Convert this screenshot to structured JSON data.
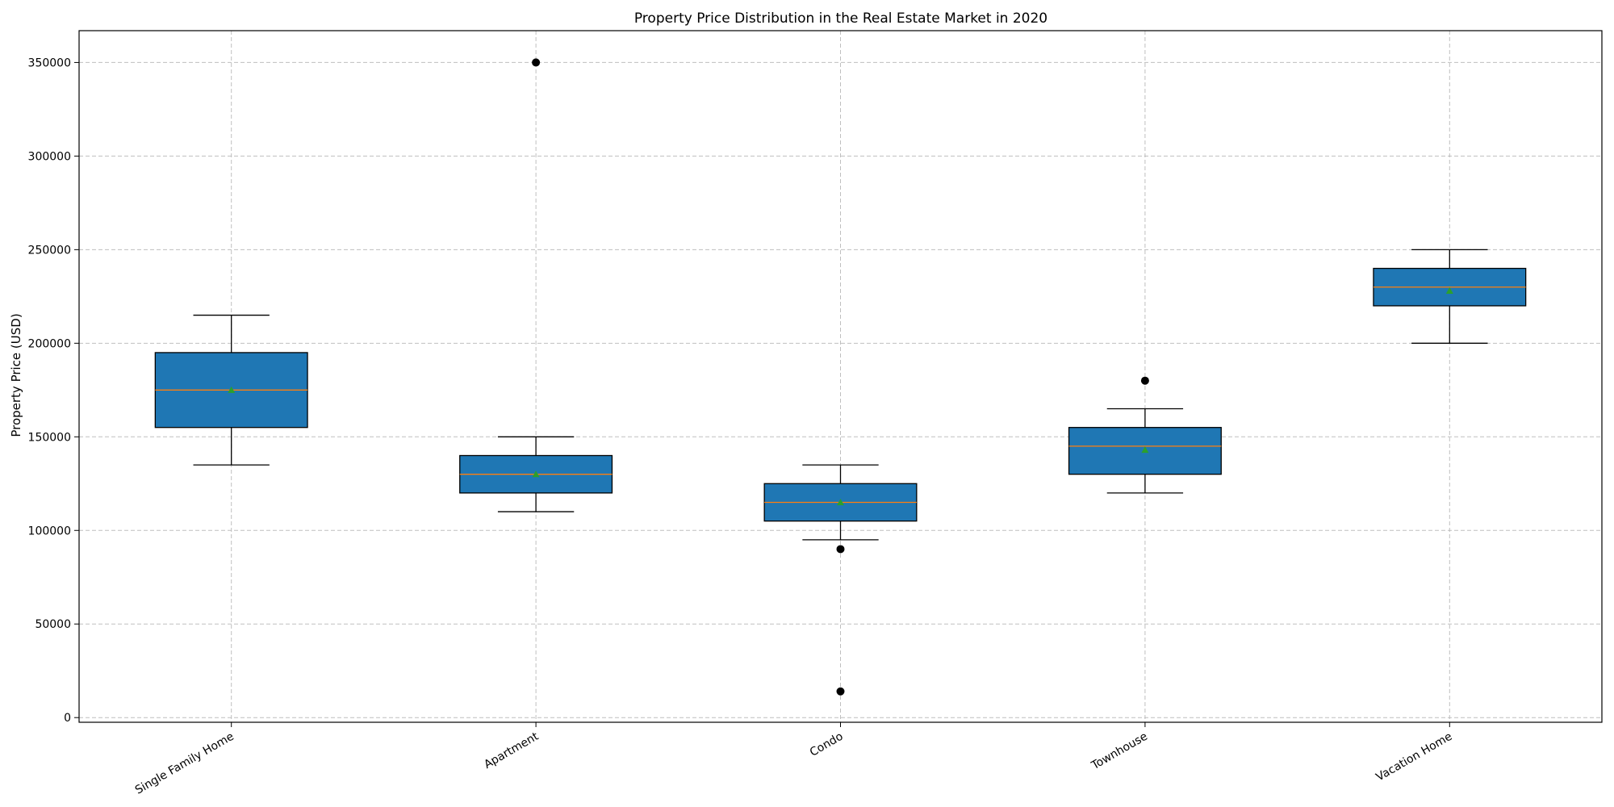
{
  "chart_data": {
    "type": "box",
    "title": "Property Price Distribution in the Real Estate Market in 2020",
    "xlabel": "",
    "ylabel": "Property Price (USD)",
    "ylim": [
      -2500,
      367000
    ],
    "yticks": [
      0,
      50000,
      100000,
      150000,
      200000,
      250000,
      300000,
      350000
    ],
    "grid": true,
    "show_means": true,
    "categories": [
      "Single Family Home",
      "Apartment",
      "Condo",
      "Townhouse",
      "Vacation Home"
    ],
    "boxes": [
      {
        "category": "Single Family Home",
        "whisker_low": 135000,
        "q1": 155000,
        "median": 175000,
        "q3": 195000,
        "whisker_high": 215000,
        "mean": 175000,
        "outliers": []
      },
      {
        "category": "Apartment",
        "whisker_low": 110000,
        "q1": 120000,
        "median": 130000,
        "q3": 140000,
        "whisker_high": 150000,
        "mean": 130000,
        "outliers": [
          350000
        ]
      },
      {
        "category": "Condo",
        "whisker_low": 95000,
        "q1": 105000,
        "median": 115000,
        "q3": 125000,
        "whisker_high": 135000,
        "mean": 115000,
        "outliers": [
          90000,
          14000
        ]
      },
      {
        "category": "Townhouse",
        "whisker_low": 120000,
        "q1": 130000,
        "median": 145000,
        "q3": 155000,
        "whisker_high": 165000,
        "mean": 143000,
        "outliers": [
          180000
        ]
      },
      {
        "category": "Vacation Home",
        "whisker_low": 200000,
        "q1": 220000,
        "median": 230000,
        "q3": 240000,
        "whisker_high": 250000,
        "mean": 228000,
        "outliers": []
      }
    ],
    "colors": {
      "box_fill": "#1f77b4",
      "box_edge": "#000000",
      "median": "#ff7f0e",
      "mean_marker": "#2ca02c",
      "outlier": "#000000",
      "grid": "#b0b0b0"
    }
  }
}
